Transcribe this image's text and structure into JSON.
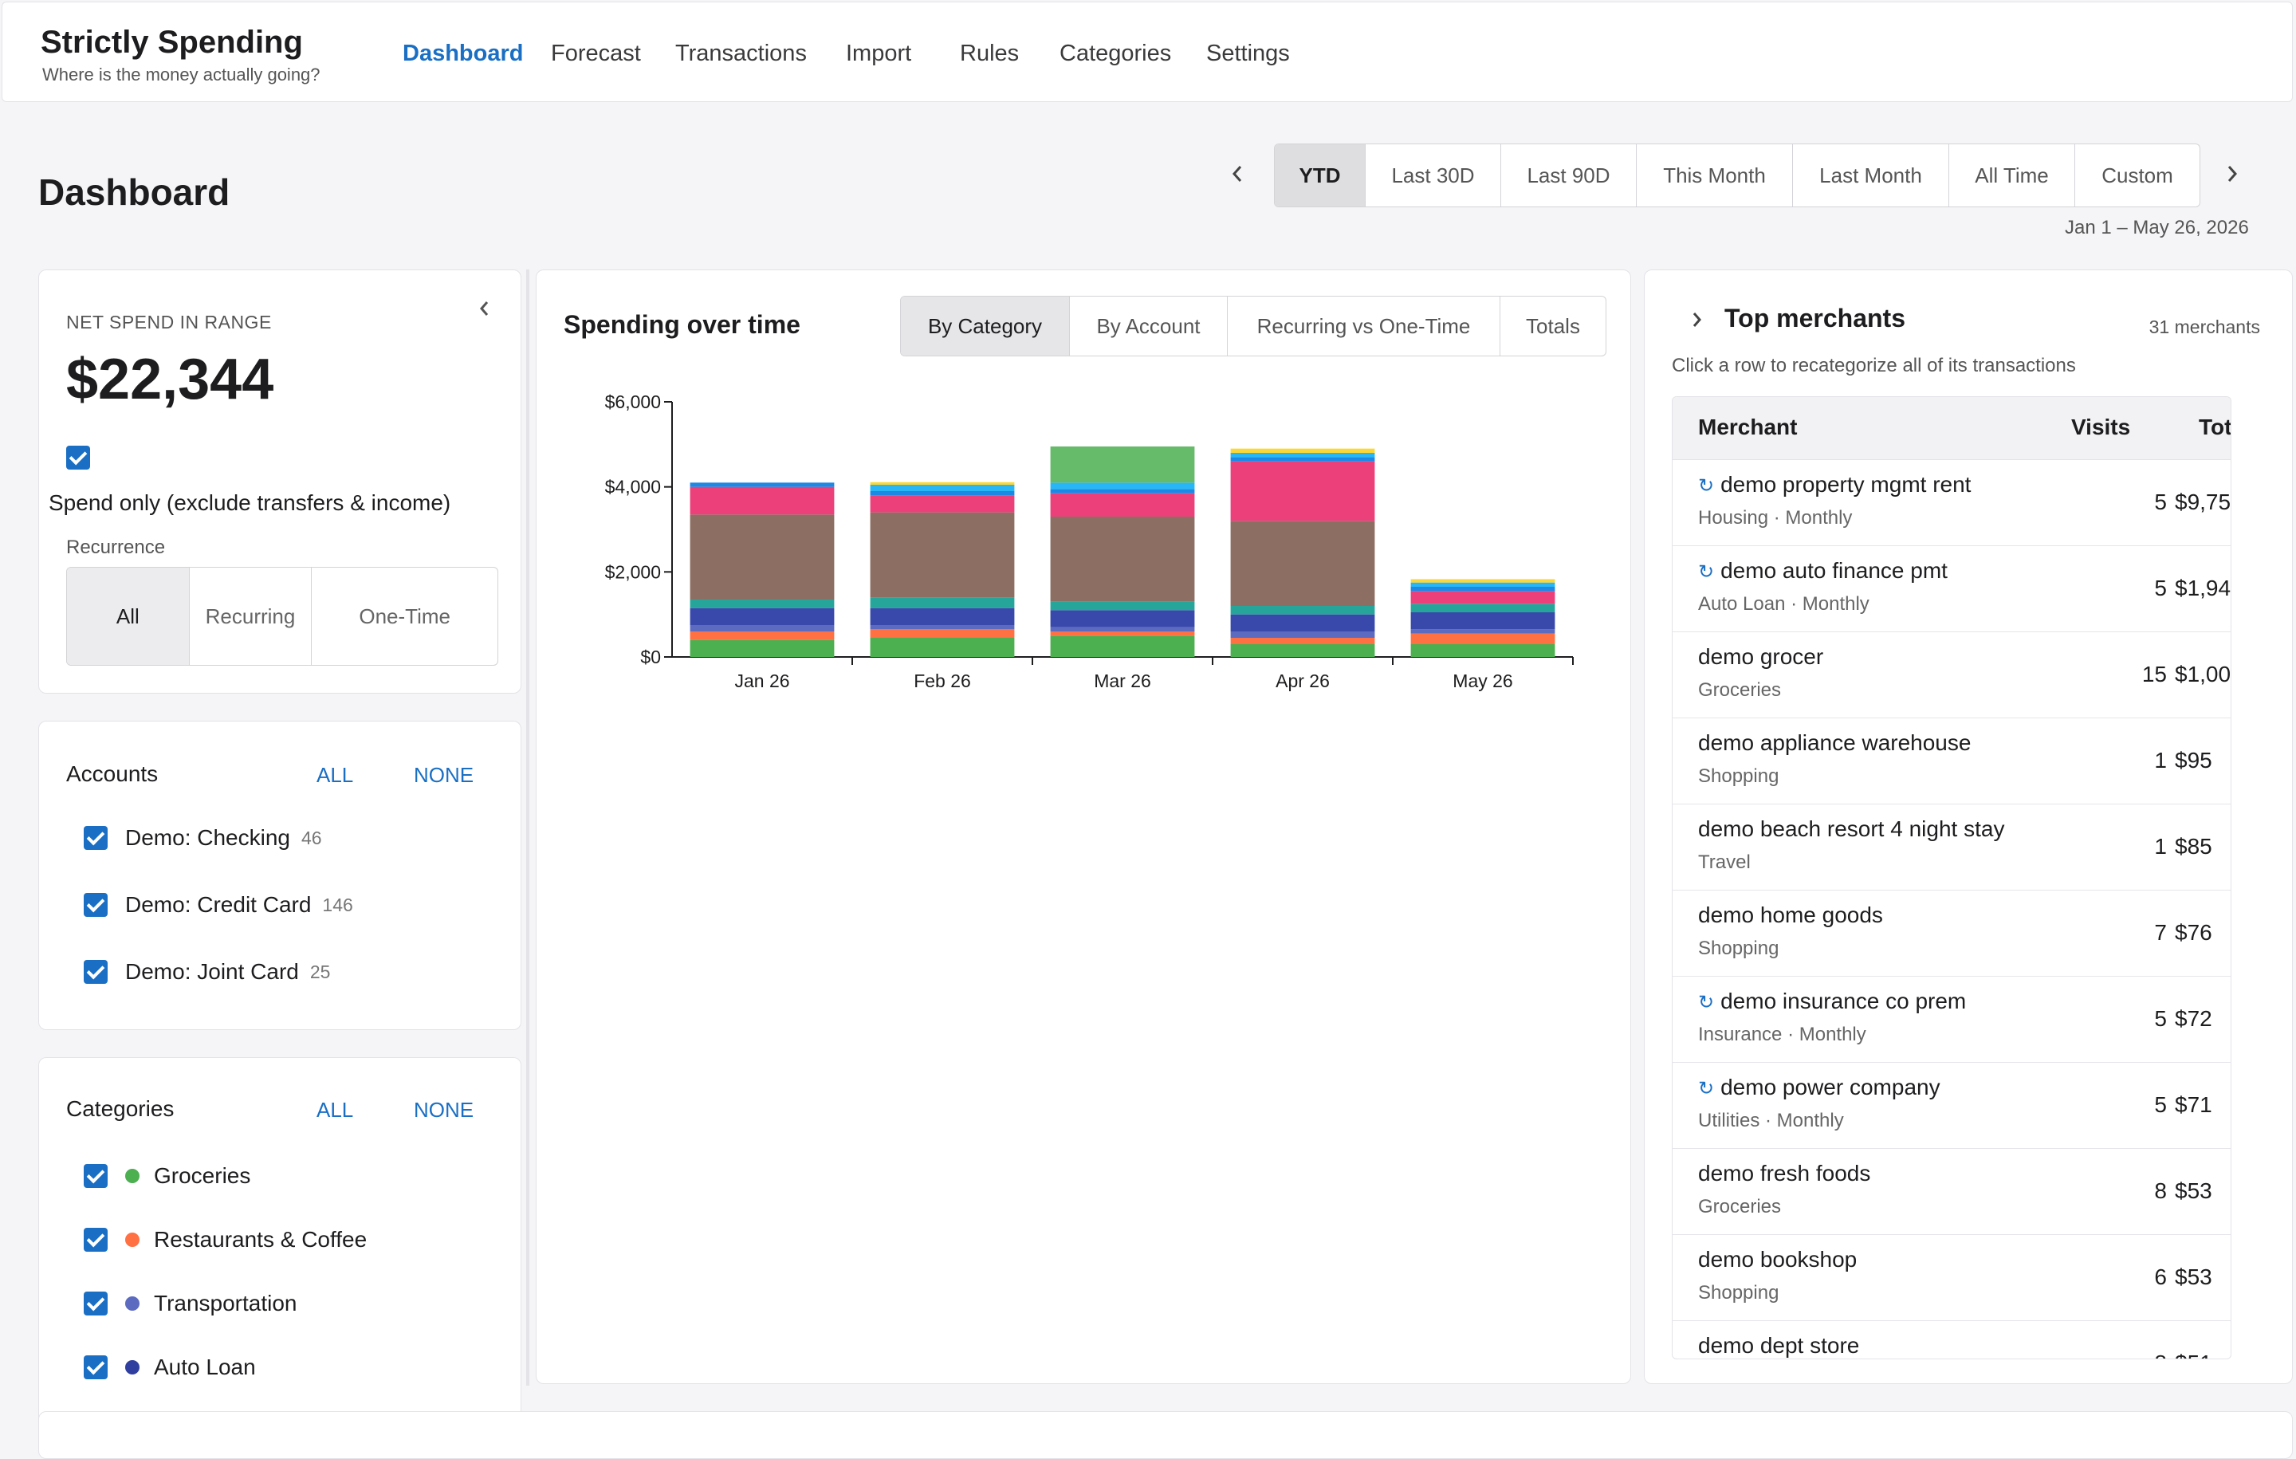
{
  "app": {
    "title": "Strictly Spending",
    "subtitle": "Where is the money actually going?"
  },
  "nav": [
    {
      "label": "Dashboard",
      "active": true
    },
    {
      "label": "Forecast"
    },
    {
      "label": "Transactions"
    },
    {
      "label": "Import"
    },
    {
      "label": "Rules"
    },
    {
      "label": "Categories"
    },
    {
      "label": "Settings"
    }
  ],
  "page": {
    "title": "Dashboard"
  },
  "range": {
    "options": [
      "YTD",
      "Last 30D",
      "Last 90D",
      "This Month",
      "Last Month",
      "All Time",
      "Custom"
    ],
    "selected": "YTD",
    "text": "Jan 1 – May 26, 2026",
    "prev_icon": "chevron-left-icon",
    "next_icon": "chevron-right-icon"
  },
  "summary": {
    "label": "NET SPEND IN RANGE",
    "value": "$22,344",
    "spend_only_label": "Spend only (exclude transfers & income)",
    "recurrence_label": "Recurrence",
    "recurrence_options": [
      "All",
      "Recurring",
      "One-Time"
    ],
    "recurrence_selected": "All"
  },
  "accounts": {
    "title": "Accounts",
    "all_label": "ALL",
    "none_label": "NONE",
    "items": [
      {
        "name": "Demo: Checking",
        "count": "46"
      },
      {
        "name": "Demo: Credit Card",
        "count": "146"
      },
      {
        "name": "Demo: Joint Card",
        "count": "25"
      }
    ]
  },
  "categories": {
    "title": "Categories",
    "all_label": "ALL",
    "none_label": "NONE",
    "items": [
      {
        "name": "Groceries",
        "color": "#4caf50"
      },
      {
        "name": "Restaurants & Coffee",
        "color": "#ff7043"
      },
      {
        "name": "Transportation",
        "color": "#5c6bc0"
      },
      {
        "name": "Auto Loan",
        "color": "#303f9f"
      }
    ]
  },
  "chart": {
    "title": "Spending over time",
    "tabs": [
      "By Category",
      "By Account",
      "Recurring vs One-Time",
      "Totals"
    ],
    "selected_tab": "By Category"
  },
  "chart_data": {
    "type": "bar",
    "stacked": true,
    "categories": [
      "Jan 26",
      "Feb 26",
      "Mar 26",
      "Apr 26",
      "May 26"
    ],
    "ylim": [
      0,
      6000
    ],
    "yticks": [
      "$0",
      "$2,000",
      "$4,000",
      "$6,000"
    ],
    "ytick_values": [
      0,
      2000,
      4000,
      6000
    ],
    "series": [
      {
        "color": "#4caf50",
        "values": [
          400,
          450,
          500,
          300,
          300
        ]
      },
      {
        "color": "#ff7043",
        "values": [
          200,
          200,
          100,
          150,
          250
        ]
      },
      {
        "color": "#5c6bc0",
        "values": [
          150,
          100,
          100,
          150,
          100
        ]
      },
      {
        "color": "#3949ab",
        "values": [
          400,
          400,
          400,
          400,
          400
        ]
      },
      {
        "color": "#26a69a",
        "values": [
          200,
          250,
          200,
          200,
          200
        ]
      },
      {
        "color": "#8d6e63",
        "values": [
          2000,
          2000,
          2000,
          2000,
          0
        ]
      },
      {
        "color": "#ec407a",
        "values": [
          650,
          400,
          550,
          1400,
          300
        ]
      },
      {
        "color": "#1e88e5",
        "values": [
          100,
          100,
          100,
          100,
          100
        ]
      },
      {
        "color": "#29b6f6",
        "values": [
          0,
          150,
          150,
          100,
          100
        ]
      },
      {
        "color": "#fdd835",
        "values": [
          0,
          60,
          0,
          100,
          80
        ]
      },
      {
        "color": "#66bb6a",
        "values": [
          0,
          0,
          850,
          0,
          0
        ]
      }
    ]
  },
  "merchants": {
    "title": "Top merchants",
    "count_label": "31 merchants",
    "hint": "Click a row to recategorize all of its transactions",
    "columns": {
      "merchant": "Merchant",
      "visits": "Visits",
      "total": "Tot"
    },
    "rows": [
      {
        "name": "demo property mgmt rent",
        "sub": "Housing · Monthly",
        "visits": "5",
        "total": "$9,75",
        "recurring": true
      },
      {
        "name": "demo auto finance pmt",
        "sub": "Auto Loan · Monthly",
        "visits": "5",
        "total": "$1,94",
        "recurring": true
      },
      {
        "name": "demo grocer",
        "sub": "Groceries",
        "visits": "15",
        "total": "$1,00",
        "recurring": false
      },
      {
        "name": "demo appliance warehouse",
        "sub": "Shopping",
        "visits": "1",
        "total": "$95",
        "recurring": false
      },
      {
        "name": "demo beach resort 4 night stay",
        "sub": "Travel",
        "visits": "1",
        "total": "$85",
        "recurring": false
      },
      {
        "name": "demo home goods",
        "sub": "Shopping",
        "visits": "7",
        "total": "$76",
        "recurring": false
      },
      {
        "name": "demo insurance co prem",
        "sub": "Insurance · Monthly",
        "visits": "5",
        "total": "$72",
        "recurring": true
      },
      {
        "name": "demo power company",
        "sub": "Utilities · Monthly",
        "visits": "5",
        "total": "$71",
        "recurring": true
      },
      {
        "name": "demo fresh foods",
        "sub": "Groceries",
        "visits": "8",
        "total": "$53",
        "recurring": false
      },
      {
        "name": "demo bookshop",
        "sub": "Shopping",
        "visits": "6",
        "total": "$53",
        "recurring": false
      },
      {
        "name": "demo dept store",
        "sub": "",
        "visits": "8",
        "total": "$51",
        "recurring": false
      }
    ]
  }
}
